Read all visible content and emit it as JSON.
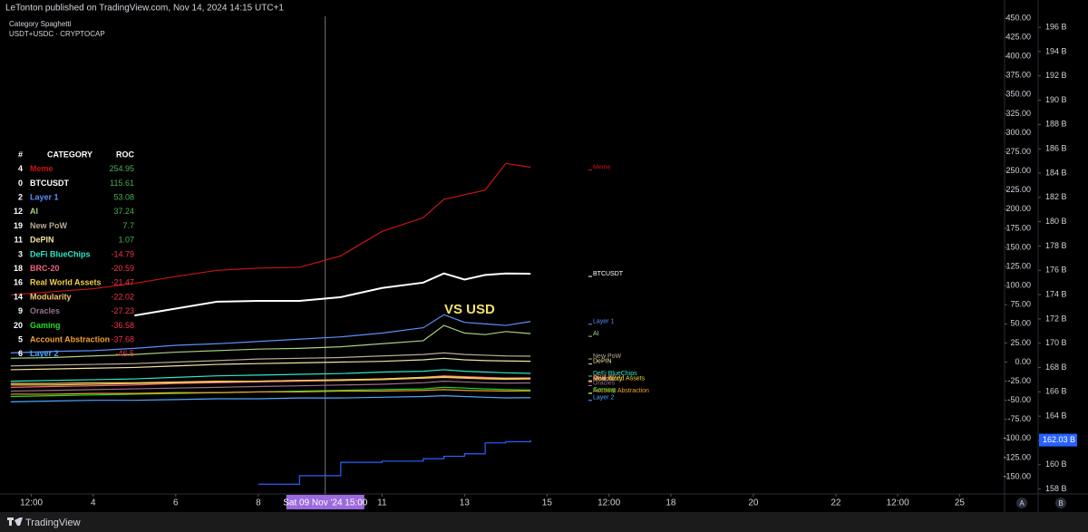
{
  "header": {
    "publisher": "LeTonton published on TradingView.com, Nov 14, 2024 14:15 UTC+1",
    "title": "Category Spaghetti"
  },
  "table": {
    "headers": [
      "#",
      "CATEGORY",
      "ROC"
    ],
    "rows": [
      {
        "id": 4,
        "roc": 254.95
      },
      {
        "id": 0,
        "roc": 115.61
      },
      {
        "id": 2,
        "roc": 53.08
      },
      {
        "id": 12,
        "roc": 37.24
      },
      {
        "id": 19,
        "roc": 7.7
      },
      {
        "id": 11,
        "roc": 1.07
      },
      {
        "id": 3,
        "roc": -14.79
      },
      {
        "id": 18,
        "roc": -20.59
      },
      {
        "id": 16,
        "roc": -21.47
      },
      {
        "id": 14,
        "roc": -22.02
      },
      {
        "id": 9,
        "roc": -27.23
      },
      {
        "id": 20,
        "roc": -36.58
      },
      {
        "id": 5,
        "roc": -37.68
      },
      {
        "id": 6,
        "roc": -46.5
      }
    ]
  },
  "chart_data": {
    "type": "line",
    "annotation": "VS USD",
    "crosshair": {
      "x": 9.625,
      "label": "Sat 09 Nov '24   15:00"
    },
    "x": [
      2,
      3,
      4,
      5,
      6,
      7,
      8,
      9,
      10,
      11,
      12,
      12.5,
      13,
      13.5,
      14,
      14.6
    ],
    "xlim": [
      1.74,
      26.09
    ],
    "xticks": [
      {
        "value": 2.5,
        "label": "12:00"
      },
      4,
      6,
      8,
      11,
      13,
      15,
      {
        "value": 16.5,
        "label": "12:00"
      },
      18,
      20,
      22,
      {
        "value": 23.5,
        "label": "12:00"
      },
      25
    ],
    "ylim": [
      -172.5,
      452.4
    ],
    "yticks": [
      {
        "value": 450,
        "label": "450.00"
      },
      {
        "value": 425,
        "label": "425.00"
      },
      {
        "value": 400,
        "label": "400.00"
      },
      {
        "value": 375,
        "label": "375.00"
      },
      {
        "value": 350,
        "label": "350.00"
      },
      {
        "value": 325,
        "label": "325.00"
      },
      {
        "value": 300,
        "label": "300.00"
      },
      {
        "value": 275,
        "label": "275.00"
      },
      {
        "value": 250,
        "label": "250.00"
      },
      {
        "value": 225,
        "label": "225.00"
      },
      {
        "value": 200,
        "label": "200.00"
      },
      {
        "value": 175,
        "label": "175.00"
      },
      {
        "value": 150,
        "label": "150.00"
      },
      {
        "value": 125,
        "label": "125.00"
      },
      {
        "value": 100,
        "label": "100.00"
      },
      {
        "value": 75,
        "label": "75.00"
      },
      {
        "value": 50,
        "label": "50.00"
      },
      {
        "value": 25,
        "label": "25.00"
      },
      {
        "value": 0,
        "label": "0.00"
      },
      {
        "value": -25,
        "label": "-25.00"
      },
      {
        "value": -50,
        "label": "-50.00"
      },
      {
        "value": -75,
        "label": "-75.00"
      },
      {
        "value": -100,
        "label": "-100.00"
      },
      {
        "value": -125,
        "label": "-125.00"
      },
      {
        "value": -150,
        "label": "-150.00"
      }
    ],
    "y2lim": [
      157.6,
      196.9
    ],
    "y2ticks": [
      {
        "value": 196,
        "label": "196 B"
      },
      {
        "value": 194,
        "label": "194 B"
      },
      {
        "value": 192,
        "label": "192 B"
      },
      {
        "value": 190,
        "label": "190 B"
      },
      {
        "value": 188,
        "label": "188 B"
      },
      {
        "value": 186,
        "label": "186 B"
      },
      {
        "value": 184,
        "label": "184 B"
      },
      {
        "value": 182,
        "label": "182 B"
      },
      {
        "value": 180,
        "label": "180 B"
      },
      {
        "value": 178,
        "label": "178 B"
      },
      {
        "value": 176,
        "label": "176 B"
      },
      {
        "value": 174,
        "label": "174 B"
      },
      {
        "value": 172,
        "label": "172 B"
      },
      {
        "value": 170,
        "label": "170 B"
      },
      {
        "value": 168,
        "label": "168 B"
      },
      {
        "value": 166,
        "label": "166 B"
      },
      {
        "value": 164,
        "label": "164 B"
      },
      {
        "value": 162,
        "label": "162 B"
      },
      {
        "value": 160,
        "label": "160 B"
      },
      {
        "value": 158,
        "label": "158 B"
      }
    ],
    "series": [
      {
        "name": "Meme",
        "color": "#c81414",
        "values": [
          88,
          92,
          96,
          103,
          112,
          120,
          123,
          124,
          139,
          171,
          189,
          213,
          219,
          225,
          260,
          254.95
        ]
      },
      {
        "name": "BTCUSDT",
        "color": "#ffffff",
        "values": [
          null,
          null,
          null,
          61,
          70,
          79,
          80,
          80,
          85,
          97,
          104,
          116,
          108,
          114,
          116,
          115.61
        ]
      },
      {
        "name": "Layer 1",
        "color": "#5b8ff9",
        "values": [
          12,
          14,
          15,
          18,
          22,
          24,
          27,
          30,
          33,
          38,
          45,
          62,
          52,
          50,
          48,
          53.08
        ]
      },
      {
        "name": "AI",
        "color": "#a8cf7e",
        "values": [
          5,
          6,
          8,
          10,
          13,
          15,
          17,
          18,
          20,
          24,
          28,
          48,
          38,
          36,
          40,
          37.24
        ]
      },
      {
        "name": "New PoW",
        "color": "#b9aa96",
        "values": [
          -5,
          -4,
          -3,
          -2,
          0,
          2,
          4,
          5,
          6,
          8,
          10,
          12,
          10,
          9,
          8,
          7.7
        ]
      },
      {
        "name": "DePIN",
        "color": "#f3e3a0",
        "values": [
          -10,
          -9,
          -8,
          -7,
          -5,
          -3,
          -2,
          -1,
          0,
          1,
          3,
          5,
          3,
          2,
          1.5,
          1.07
        ]
      },
      {
        "name": "DeFi BlueChips",
        "color": "#2ee8c8",
        "values": [
          -25,
          -24,
          -23,
          -22,
          -20,
          -18,
          -17,
          -16,
          -15,
          -13,
          -12,
          -10,
          -12,
          -13,
          -14,
          -14.79
        ]
      },
      {
        "name": "BRC-20",
        "color": "#f06080",
        "values": [
          -33,
          -32,
          -31,
          -30,
          -28,
          -27,
          -26,
          -25,
          -24,
          -22,
          -20,
          -18,
          -19,
          -20,
          -21,
          -20.59
        ]
      },
      {
        "name": "Real World Assets",
        "color": "#f5d040",
        "values": [
          -30,
          -30,
          -29,
          -28,
          -27,
          -26,
          -25,
          -24,
          -23,
          -22,
          -20,
          -19,
          -20,
          -21,
          -21.2,
          -21.47
        ]
      },
      {
        "name": "Modularity",
        "color": "#f5c46a",
        "values": [
          -28,
          -28,
          -27,
          -27,
          -26,
          -25,
          -25,
          -24,
          -24,
          -23,
          -21,
          -20,
          -21,
          -22,
          -22.5,
          -22.02
        ]
      },
      {
        "name": "Oracles",
        "color": "#9a7090",
        "values": [
          -38,
          -37,
          -36,
          -35,
          -34,
          -33,
          -32,
          -31,
          -30,
          -29,
          -27,
          -25,
          -26,
          -27,
          -27.5,
          -27.23
        ]
      },
      {
        "name": "Gaming",
        "color": "#22dd22",
        "values": [
          -45,
          -44,
          -43,
          -42,
          -41,
          -40,
          -39,
          -38,
          -37,
          -36,
          -35,
          -33,
          -34,
          -35,
          -36,
          -36.58
        ]
      },
      {
        "name": "Account Abstraction",
        "color": "#f0a030",
        "values": [
          -42,
          -42,
          -41,
          -41,
          -40,
          -40,
          -39,
          -39,
          -38,
          -38,
          -37,
          -36,
          -37,
          -37.5,
          -38,
          -37.68
        ]
      },
      {
        "name": "Layer 2",
        "color": "#4aa8ff",
        "values": [
          -52,
          -51,
          -50,
          -50,
          -49,
          -48,
          -48,
          -47,
          -47,
          -46,
          -45,
          -44,
          -45,
          -46,
          -46.8,
          -46.5
        ]
      },
      {
        "name": "USDT+USDC · CRYPTOCAP",
        "color": "#2962ff",
        "axis": "y2",
        "step": true,
        "values": [
          null,
          null,
          null,
          null,
          null,
          null,
          158.4,
          159.1,
          160.2,
          160.3,
          160.5,
          160.7,
          160.9,
          161.8,
          161.9,
          162.03
        ],
        "value_labels": [
          null,
          null,
          null,
          null,
          null,
          null,
          null,
          null,
          null,
          null,
          null,
          null,
          null,
          null,
          null,
          "162.03 B"
        ]
      }
    ]
  },
  "footer": {
    "brand": "TradingView",
    "buttons": [
      "A",
      "B"
    ]
  }
}
